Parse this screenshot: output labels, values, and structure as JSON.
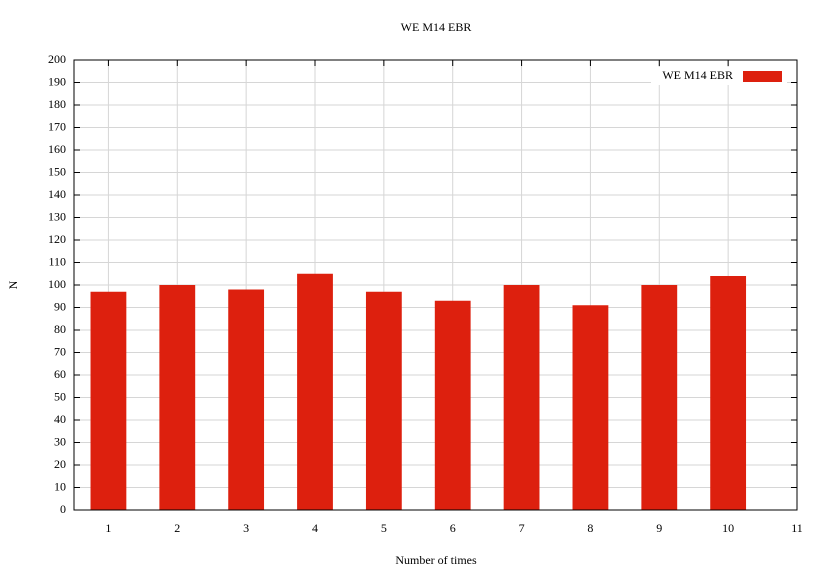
{
  "chart_data": {
    "type": "bar",
    "title": "WE M14 EBR",
    "x_label": "Number of times",
    "y_label": "N",
    "x": [
      1,
      2,
      3,
      4,
      5,
      6,
      7,
      8,
      9,
      10
    ],
    "series": [
      {
        "name": "WE M14 EBR",
        "color": "#dd200e",
        "values": [
          97,
          100,
          98,
          105,
          97,
          93,
          100,
          91,
          100,
          104
        ]
      }
    ],
    "xlim": [
      0.5,
      11
    ],
    "xticks": [
      1,
      2,
      3,
      4,
      5,
      6,
      7,
      8,
      9,
      10,
      11
    ],
    "ylim": [
      0,
      200
    ],
    "yticks": [
      0,
      10,
      20,
      30,
      40,
      50,
      60,
      70,
      80,
      90,
      100,
      110,
      120,
      130,
      140,
      150,
      160,
      170,
      180,
      190,
      200
    ],
    "grid": true,
    "legend": "top-right"
  }
}
